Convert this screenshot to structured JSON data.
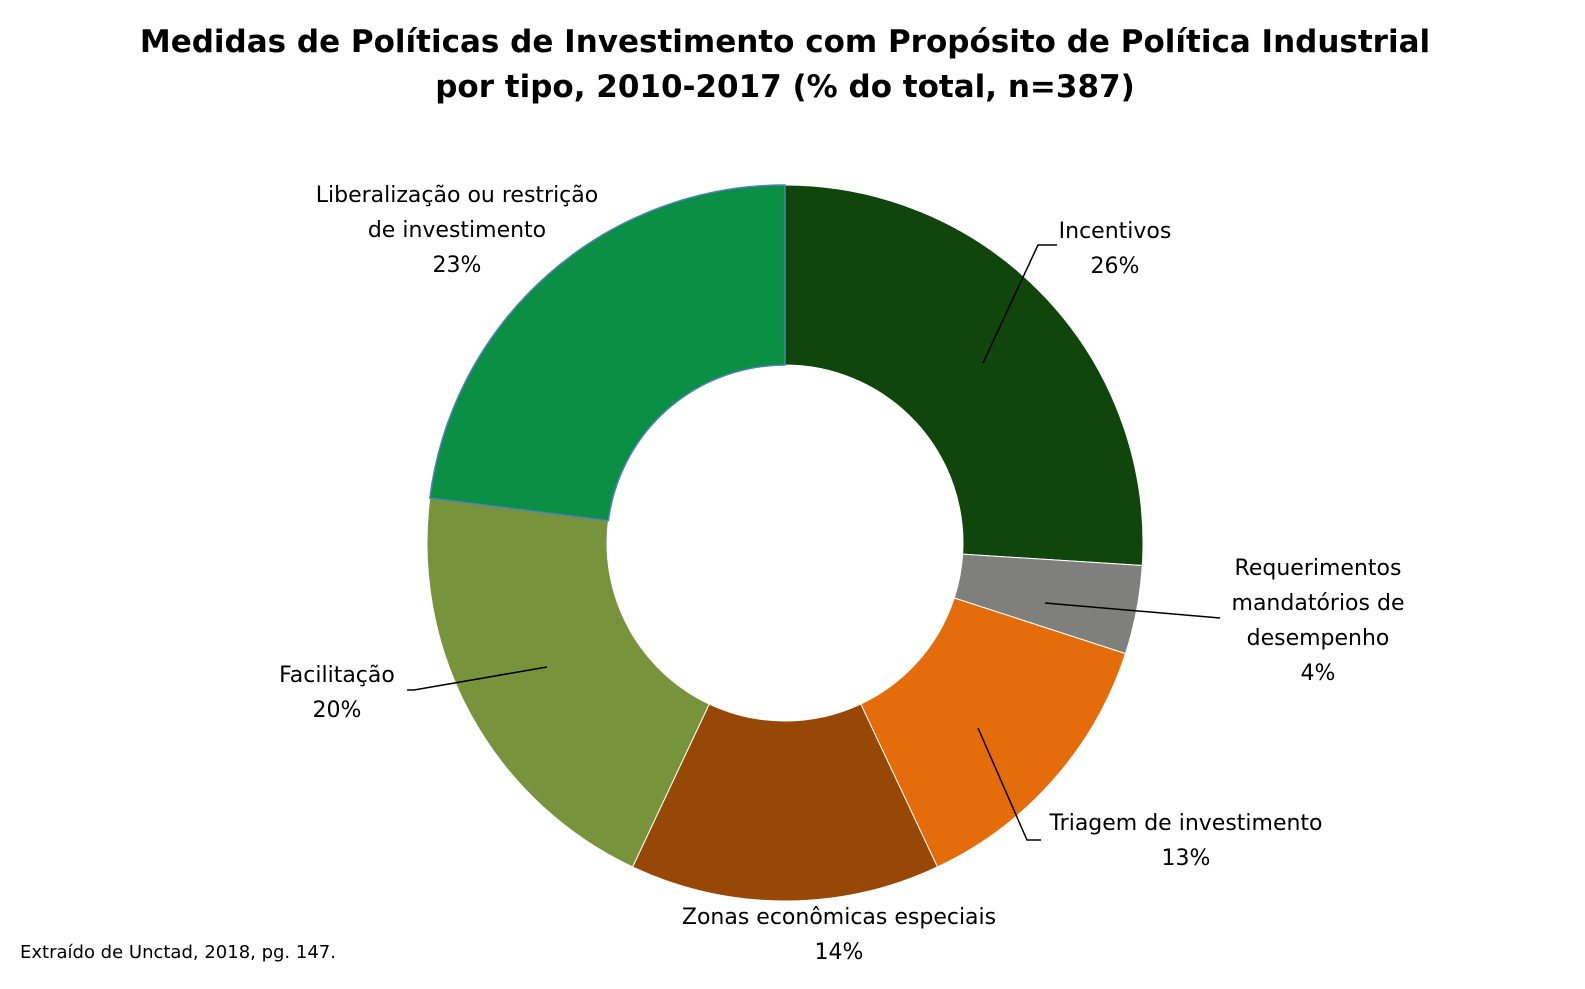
{
  "chart_data": {
    "type": "pie",
    "variant": "donut",
    "title_lines": [
      "Medidas de Políticas de Investimento com Propósito de Política Industrial",
      "por tipo, 2010-2017 (% do total, n=387)"
    ],
    "slices": [
      {
        "label_lines": [
          "Incentivos"
        ],
        "value": 26,
        "value_label": "26%",
        "color": "#10450b"
      },
      {
        "label_lines": [
          "Requerimentos",
          "mandatórios de",
          "desempenho"
        ],
        "value": 4,
        "value_label": "4%",
        "color": "#7f807d"
      },
      {
        "label_lines": [
          "Triagem de investimento"
        ],
        "value": 13,
        "value_label": "13%",
        "color": "#e46c0a"
      },
      {
        "label_lines": [
          "Zonas econômicas especiais"
        ],
        "value": 14,
        "value_label": "14%",
        "color": "#974706"
      },
      {
        "label_lines": [
          "Facilitação"
        ],
        "value": 20,
        "value_label": "20%",
        "color": "#77933c"
      },
      {
        "label_lines": [
          "Liberalização ou restrição",
          "de investimento"
        ],
        "value": 23,
        "value_label": "23%",
        "color": "#0a8f45"
      }
    ],
    "legend": "none",
    "data_labels": "outside-with-leader-lines"
  },
  "footer": {
    "source": "Extraído de Unctad, 2018, pg. 147."
  }
}
